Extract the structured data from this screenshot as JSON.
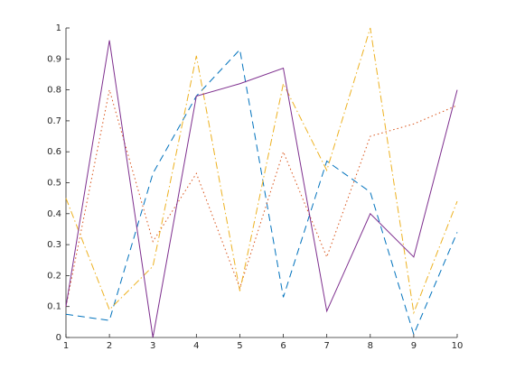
{
  "chart_data": {
    "type": "line",
    "x": [
      1,
      2,
      3,
      4,
      5,
      6,
      7,
      8,
      9,
      10
    ],
    "series": [
      {
        "color": "#0072bd",
        "linestyle": "dashed",
        "values": [
          0.075,
          0.055,
          0.53,
          0.78,
          0.93,
          0.13,
          0.57,
          0.47,
          0.01,
          0.34
        ]
      },
      {
        "color": "#d95319",
        "linestyle": "dotted",
        "values": [
          0.1,
          0.8,
          0.31,
          0.53,
          0.16,
          0.6,
          0.26,
          0.65,
          0.69,
          0.75
        ]
      },
      {
        "color": "#edb120",
        "linestyle": "dashdot",
        "values": [
          0.45,
          0.09,
          0.23,
          0.91,
          0.15,
          0.82,
          0.54,
          1.0,
          0.08,
          0.44
        ]
      },
      {
        "color": "#7e2f8e",
        "linestyle": "solid",
        "values": [
          0.1,
          0.96,
          0.0,
          0.78,
          0.82,
          0.87,
          0.085,
          0.4,
          0.26,
          0.8
        ]
      }
    ],
    "xlim": [
      1,
      10
    ],
    "xticks": [
      1,
      2,
      3,
      4,
      5,
      6,
      7,
      8,
      9,
      10
    ],
    "ylim": [
      0,
      1
    ],
    "yticks": [
      0,
      0.1,
      0.2,
      0.3,
      0.4,
      0.5,
      0.6,
      0.7,
      0.8,
      0.9,
      1
    ],
    "grid": false
  }
}
